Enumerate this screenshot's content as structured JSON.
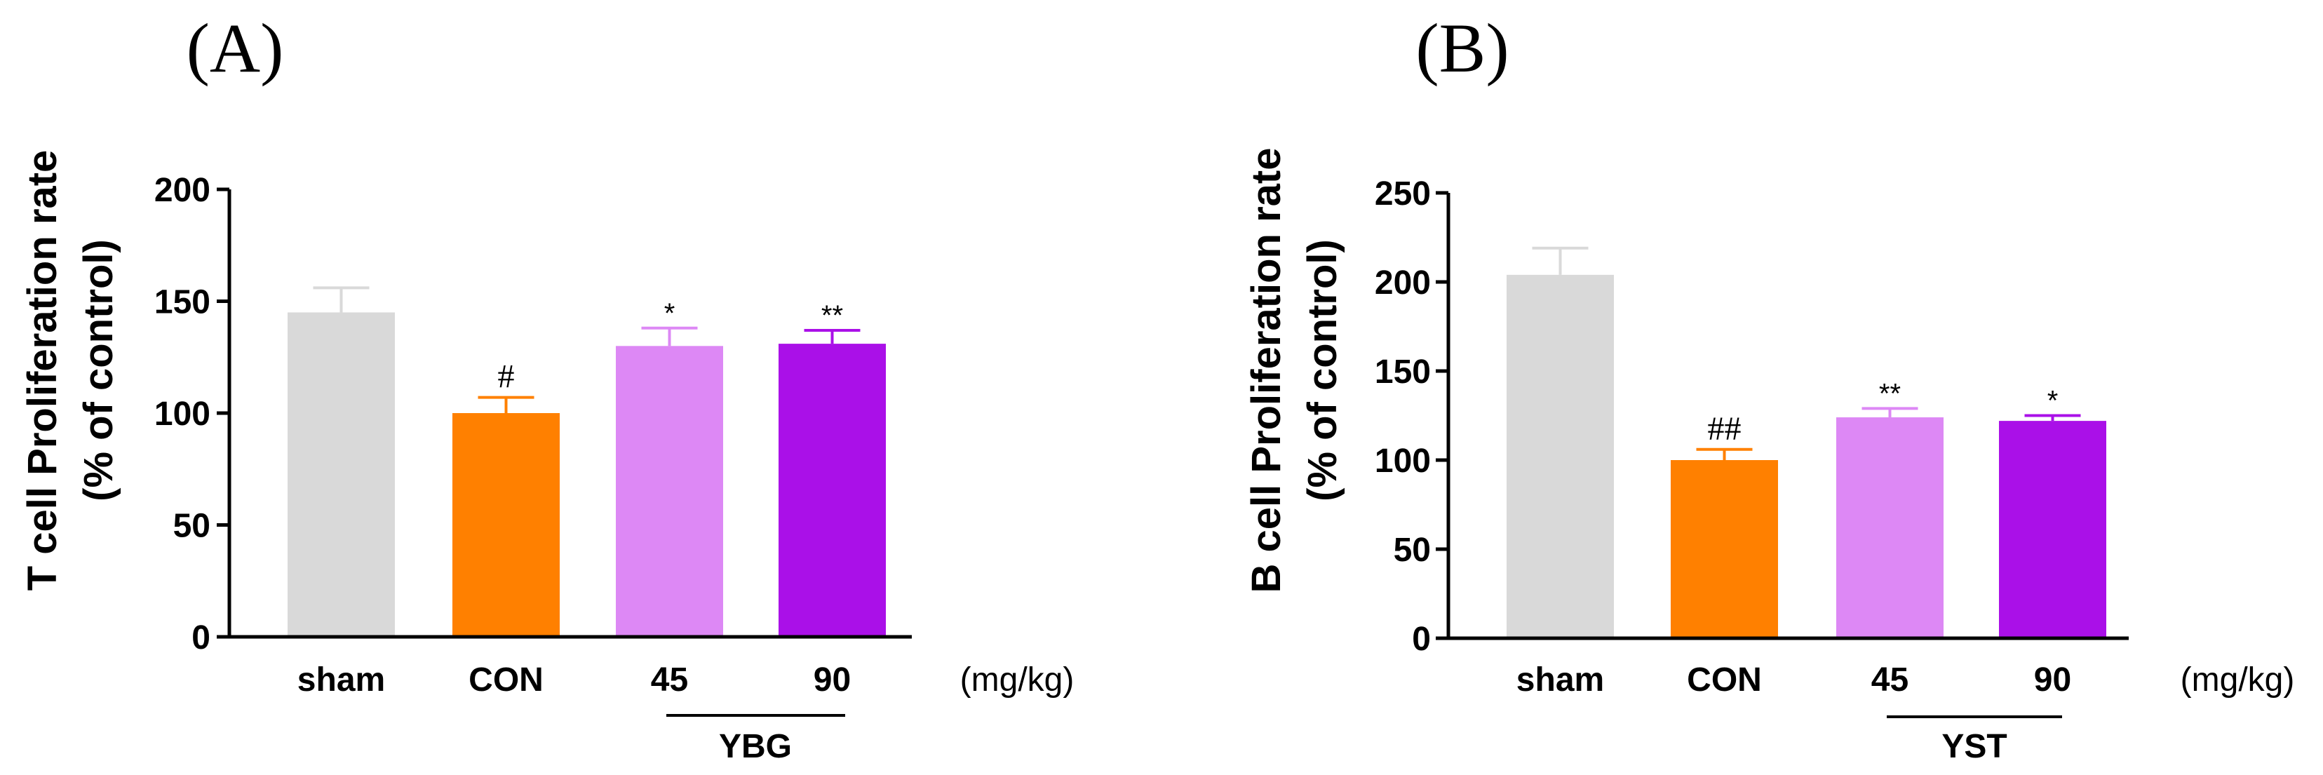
{
  "chart_data": [
    {
      "type": "bar",
      "panel_label": "(A)",
      "ylabel": [
        "T cell Proliferation rate",
        "(% of control)"
      ],
      "ylim": [
        0,
        200
      ],
      "yticks": [
        0,
        50,
        100,
        150,
        200
      ],
      "categories": [
        "sham",
        "CON",
        "45",
        "90"
      ],
      "values": [
        145,
        100,
        130,
        131
      ],
      "errors": [
        11,
        7,
        8,
        6
      ],
      "colors": [
        "#d9d9d9",
        "#ff8000",
        "#dd88f5",
        "#aa10e8"
      ],
      "annotations": [
        "",
        "#",
        "*",
        "**"
      ],
      "group_label": "YBG",
      "unit_label": "(mg/kg)"
    },
    {
      "type": "bar",
      "panel_label": "(B)",
      "ylabel": [
        "B cell Proliferation rate",
        "(% of control)"
      ],
      "ylim": [
        0,
        250
      ],
      "yticks": [
        0,
        50,
        100,
        150,
        200,
        250
      ],
      "categories": [
        "sham",
        "CON",
        "45",
        "90"
      ],
      "values": [
        204,
        100,
        124,
        122
      ],
      "errors": [
        15,
        6,
        5,
        3
      ],
      "colors": [
        "#d9d9d9",
        "#ff8000",
        "#dd88f5",
        "#aa10e8"
      ],
      "annotations": [
        "",
        "##",
        "**",
        "*"
      ],
      "group_label": "YST",
      "unit_label": "(mg/kg)"
    }
  ]
}
